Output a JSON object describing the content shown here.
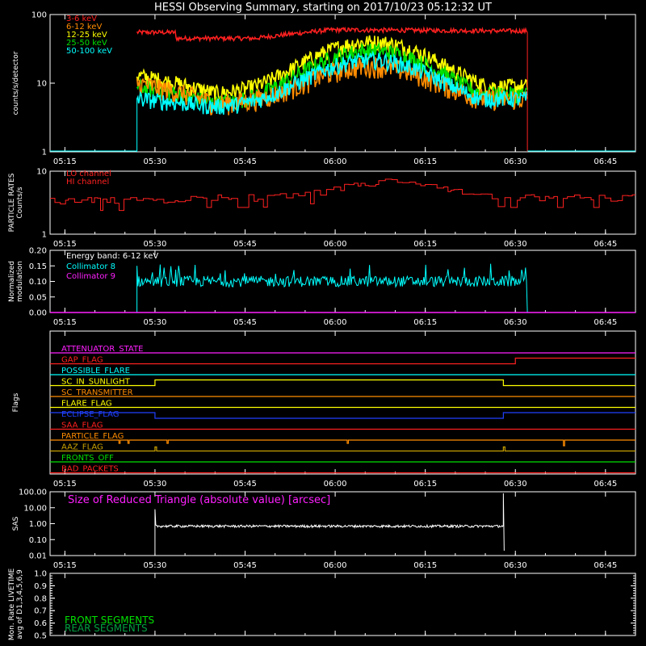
{
  "title": "HESSI Observing Summary, starting on 2017/10/23 05:12:32 UT",
  "time_ticks": [
    "05:15",
    "05:30",
    "05:45",
    "06:00",
    "06:15",
    "06:30",
    "06:45"
  ],
  "colors": {
    "red": "#ff2020",
    "orange": "#ff8c00",
    "yellow": "#ffff00",
    "green": "#00e000",
    "cyan": "#00ffff",
    "magenta": "#ff20ff",
    "blue": "#2040ff",
    "olive": "#c8a000",
    "white": "#ffffff",
    "darkgreen": "#00a040"
  },
  "chart_data": [
    {
      "type": "line",
      "ylabel": "counts/s/detector",
      "yscale": "log",
      "ylim": [
        1,
        100
      ],
      "yticks": [
        "1",
        "10",
        "100"
      ],
      "legend": [
        "3-6 keV",
        "6-12 keV",
        "12-25 keV",
        "25-50 keV",
        "50-100 keV"
      ],
      "legend_colors": [
        "red",
        "orange",
        "yellow",
        "green",
        "cyan"
      ],
      "data_start": "05:27",
      "data_end": "06:32",
      "series_summary": [
        {
          "name": "3-6 keV",
          "start": 55,
          "dip": 45,
          "peak": 60,
          "end": 55
        },
        {
          "name": "6-12 keV",
          "start": 10,
          "min": 5,
          "peak": 18,
          "end": 6
        },
        {
          "name": "12-25 keV",
          "start": 13,
          "min": 7,
          "peak": 40,
          "end": 9
        },
        {
          "name": "25-50 keV",
          "start": 9,
          "min": 5,
          "peak": 30,
          "end": 7
        },
        {
          "name": "50-100 keV",
          "start": 6,
          "min": 4.5,
          "peak": 22,
          "end": 6
        }
      ]
    },
    {
      "type": "line",
      "ylabel_lines": [
        "PARTICLE RATES",
        "Counts/s"
      ],
      "yscale": "log",
      "ylim": [
        1,
        10
      ],
      "yticks": [
        "1",
        "10"
      ],
      "legend": [
        "LO channel",
        "HI channel"
      ],
      "legend_colors": [
        "red",
        "red"
      ]
    },
    {
      "type": "line",
      "ylabel_lines": [
        "Normalized",
        "modulation"
      ],
      "ylim": [
        0,
        0.2
      ],
      "yticks": [
        "0.00",
        "0.05",
        "0.10",
        "0.15",
        "0.20"
      ],
      "annotation": "Energy band: 6-12 keV",
      "legend": [
        "Collimator 8",
        "Collimator 9"
      ],
      "legend_colors": [
        "cyan",
        "magenta"
      ],
      "baseline": 0.1
    },
    {
      "type": "line",
      "ylabel": "Flags",
      "flags": [
        {
          "name": "ATTENUATOR_STATE",
          "color": "magenta"
        },
        {
          "name": "GAP_FLAG",
          "color": "red"
        },
        {
          "name": "POSSIBLE_FLARE",
          "color": "cyan"
        },
        {
          "name": "SC_IN_SUNLIGHT",
          "color": "yellow"
        },
        {
          "name": "SC_TRANSMITTER",
          "color": "orange"
        },
        {
          "name": "FLARE_FLAG",
          "color": "yellow"
        },
        {
          "name": "ECLIPSE_FLAG",
          "color": "blue"
        },
        {
          "name": "SAA_FLAG",
          "color": "red"
        },
        {
          "name": "PARTICLE_FLAG",
          "color": "orange"
        },
        {
          "name": "AAZ_FLAG",
          "color": "olive"
        },
        {
          "name": "FRONTS_OFF",
          "color": "green"
        },
        {
          "name": "BAD_PACKETS",
          "color": "red"
        }
      ]
    },
    {
      "type": "line",
      "ylabel": "SAS",
      "yscale": "log",
      "ylim": [
        0.01,
        100
      ],
      "yticks": [
        "0.01",
        "0.10",
        "1.00",
        "10.00",
        "100.00"
      ],
      "annotation": "Size of Reduced Triangle (absolute value) [arcsec]",
      "baseline": 0.7,
      "data_start": "05:30",
      "data_end": "06:28"
    },
    {
      "type": "line",
      "ylabel_lines": [
        "Mon. Rate LIVETIME",
        "avg of D1,3,4,5,6,9"
      ],
      "ylim": [
        0.5,
        1.0
      ],
      "yticks": [
        "0.5",
        "0.6",
        "0.7",
        "0.8",
        "0.9",
        "1.0"
      ],
      "legend": [
        "FRONT SEGMENTS",
        "REAR SEGMENTS"
      ],
      "legend_colors": [
        "green",
        "darkgreen"
      ]
    }
  ]
}
